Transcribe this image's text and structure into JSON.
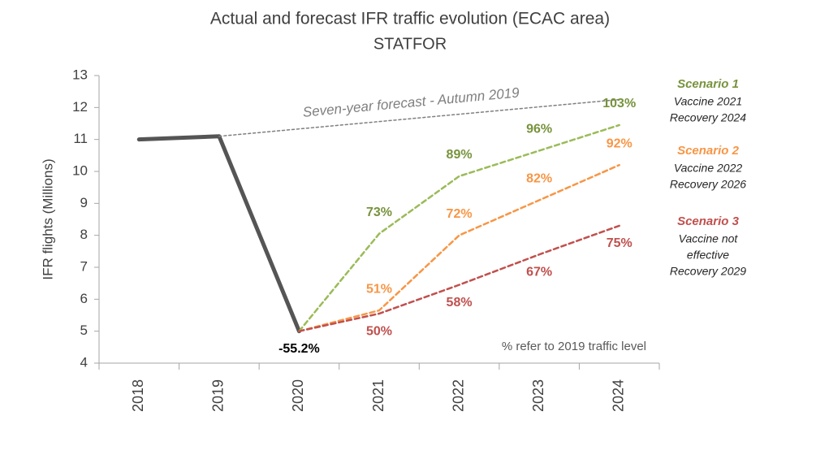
{
  "chart_data": {
    "type": "line",
    "title": "Actual and forecast IFR traffic evolution (ECAC area)",
    "subtitle": "STATFOR",
    "y_label": "IFR flights (Millions)",
    "categories": [
      "2018",
      "2019",
      "2020",
      "2021",
      "2022",
      "2023",
      "2024"
    ],
    "ylim": [
      4,
      13
    ],
    "yticks": [
      4,
      5,
      6,
      7,
      8,
      9,
      10,
      11,
      12,
      13
    ],
    "grid": false,
    "note": "% refer to 2019 traffic level",
    "series": [
      {
        "name": "Actual",
        "color": "#555555",
        "style": "solid",
        "label_position": "below",
        "label_color": "#000000",
        "values": [
          11.0,
          11.1,
          5.0,
          null,
          null,
          null,
          null
        ],
        "percent_labels": [
          null,
          null,
          "-55.2%",
          null,
          null,
          null,
          null
        ]
      },
      {
        "name": "Seven-year forecast - Autumn 2019",
        "color": "#7f7f7f",
        "style": "dotted",
        "values": [
          null,
          11.1,
          11.33,
          11.56,
          11.79,
          12.02,
          12.25
        ]
      },
      {
        "name": "Scenario 1",
        "color": "#9bbb59",
        "style": "dashed",
        "label_position": "above",
        "label_color": "#77933c",
        "description": [
          "Vaccine 2021",
          "Recovery 2024"
        ],
        "values": [
          null,
          null,
          5.0,
          8.05,
          9.85,
          10.65,
          11.45
        ],
        "percent_labels": [
          null,
          null,
          null,
          "73%",
          "89%",
          "96%",
          "103%"
        ]
      },
      {
        "name": "Scenario 2",
        "color": "#f79646",
        "style": "dashed",
        "label_position": "above",
        "label_color": "#f79646",
        "description": [
          "Vaccine 2022",
          "Recovery 2026"
        ],
        "values": [
          null,
          null,
          5.0,
          5.65,
          8.0,
          9.1,
          10.2
        ],
        "percent_labels": [
          null,
          null,
          null,
          "51%",
          "72%",
          "82%",
          "92%"
        ]
      },
      {
        "name": "Scenario 3",
        "color": "#c0504d",
        "style": "dashed",
        "label_position": "below",
        "label_color": "#c0504d",
        "description": [
          "Vaccine not",
          "effective",
          "Recovery 2029"
        ],
        "values": [
          null,
          null,
          5.0,
          5.55,
          6.45,
          7.4,
          8.3
        ],
        "percent_labels": [
          null,
          null,
          null,
          "50%",
          "58%",
          "67%",
          "75%"
        ]
      }
    ]
  }
}
